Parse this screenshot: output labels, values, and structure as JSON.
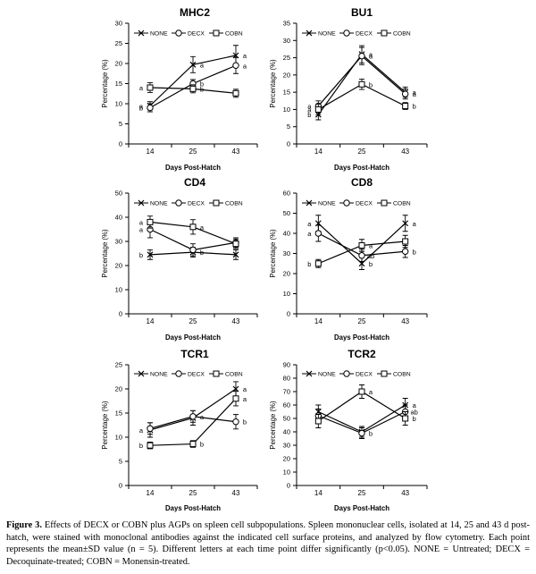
{
  "chart_data": [
    {
      "type": "line",
      "title": "MHC2",
      "xlabel": "Days Post-Hatch",
      "ylabel": "Percentage (%)",
      "categories": [
        "14",
        "25",
        "43"
      ],
      "ylim": [
        0,
        30
      ],
      "yticks": [
        0,
        5,
        10,
        15,
        20,
        25,
        30
      ],
      "legend": [
        "NONE",
        "DECX",
        "COBN"
      ],
      "series": [
        {
          "name": "NONE",
          "values": [
            9.5,
            19.7,
            22.0
          ],
          "errors": [
            1.0,
            2.0,
            2.5
          ]
        },
        {
          "name": "DECX",
          "values": [
            9.0,
            15.0,
            19.5
          ],
          "errors": [
            1.0,
            1.0,
            2.0
          ]
        },
        {
          "name": "COBN",
          "values": [
            14.0,
            13.7,
            12.6
          ],
          "errors": [
            1.2,
            1.0,
            1.0
          ]
        }
      ],
      "annotations": [
        [
          "a",
          "a",
          "a"
        ],
        [
          "b",
          "b",
          "a"
        ],
        [
          "a",
          "b",
          ""
        ]
      ]
    },
    {
      "type": "line",
      "title": "BU1",
      "xlabel": "Days Post-Hatch",
      "ylabel": "Percentage (%)",
      "categories": [
        "14",
        "25",
        "43"
      ],
      "ylim": [
        0,
        35
      ],
      "yticks": [
        0,
        5,
        10,
        15,
        20,
        25,
        30,
        35
      ],
      "legend": [
        "NONE",
        "DECX",
        "COBN"
      ],
      "series": [
        {
          "name": "NONE",
          "values": [
            8.5,
            26.0,
            15.0
          ],
          "errors": [
            1.5,
            2.5,
            1.5
          ]
        },
        {
          "name": "DECX",
          "values": [
            11.0,
            25.5,
            14.5
          ],
          "errors": [
            1.5,
            2.5,
            1.5
          ]
        },
        {
          "name": "COBN",
          "values": [
            10.0,
            17.3,
            11.0
          ],
          "errors": [
            1.5,
            1.5,
            1.0
          ]
        }
      ],
      "annotations": [
        [
          "b",
          "a",
          "a"
        ],
        [
          "a",
          "a",
          "a"
        ],
        [
          "a",
          "b",
          "b"
        ]
      ]
    },
    {
      "type": "line",
      "title": "CD4",
      "xlabel": "Days Post-Hatch",
      "ylabel": "Percentage (%)",
      "categories": [
        "14",
        "25",
        "43"
      ],
      "ylim": [
        0,
        50
      ],
      "yticks": [
        0,
        10,
        20,
        30,
        40,
        50
      ],
      "legend": [
        "NONE",
        "DECX",
        "COBN"
      ],
      "series": [
        {
          "name": "NONE",
          "values": [
            24.5,
            25.5,
            24.5
          ],
          "errors": [
            2.0,
            2.0,
            2.0
          ]
        },
        {
          "name": "DECX",
          "values": [
            35.0,
            26.5,
            29.5
          ],
          "errors": [
            3.5,
            2.5,
            2.0
          ]
        },
        {
          "name": "COBN",
          "values": [
            38.0,
            36.0,
            29.0
          ],
          "errors": [
            2.5,
            3.0,
            2.0
          ]
        }
      ],
      "annotations": [
        [
          "b",
          "b",
          ""
        ],
        [
          "a",
          "",
          ""
        ],
        [
          "a",
          "a",
          ""
        ]
      ]
    },
    {
      "type": "line",
      "title": "CD8",
      "xlabel": "Days Post-Hatch",
      "ylabel": "Percentage (%)",
      "categories": [
        "14",
        "25",
        "43"
      ],
      "ylim": [
        0,
        60
      ],
      "yticks": [
        0,
        10,
        20,
        30,
        40,
        50,
        60
      ],
      "legend": [
        "NONE",
        "DECX",
        "COBN"
      ],
      "series": [
        {
          "name": "NONE",
          "values": [
            45.0,
            25.0,
            45.0
          ],
          "errors": [
            4.0,
            3.0,
            4.0
          ]
        },
        {
          "name": "DECX",
          "values": [
            40.0,
            29.0,
            31.0
          ],
          "errors": [
            4.0,
            3.0,
            3.0
          ]
        },
        {
          "name": "COBN",
          "values": [
            25.0,
            34.0,
            36.0
          ],
          "errors": [
            2.0,
            3.0,
            3.0
          ]
        }
      ],
      "annotations": [
        [
          "a",
          "b",
          "a"
        ],
        [
          "a",
          "ab",
          "b"
        ],
        [
          "b",
          "a",
          ""
        ]
      ]
    },
    {
      "type": "line",
      "title": "TCR1",
      "xlabel": "Days Post-Hatch",
      "ylabel": "Percentage (%)",
      "categories": [
        "14",
        "25",
        "43"
      ],
      "ylim": [
        0,
        25
      ],
      "yticks": [
        0,
        5,
        10,
        15,
        20,
        25
      ],
      "legend": [
        "NONE",
        "DECX",
        "COBN"
      ],
      "series": [
        {
          "name": "NONE",
          "values": [
            11.5,
            14.0,
            20.0
          ],
          "errors": [
            1.5,
            1.5,
            1.5
          ]
        },
        {
          "name": "DECX",
          "values": [
            11.8,
            14.3,
            13.2
          ],
          "errors": [
            1.2,
            1.2,
            1.5
          ]
        },
        {
          "name": "COBN",
          "values": [
            8.3,
            8.6,
            18.0
          ],
          "errors": [
            0.7,
            0.7,
            1.5
          ]
        }
      ],
      "annotations": [
        [
          "a",
          "",
          "a"
        ],
        [
          "",
          "a",
          "b"
        ],
        [
          "b",
          "b",
          "a"
        ]
      ]
    },
    {
      "type": "line",
      "title": "TCR2",
      "xlabel": "Days Post-Hatch",
      "ylabel": "Percentage (%)",
      "categories": [
        "14",
        "25",
        "43"
      ],
      "ylim": [
        0,
        90
      ],
      "yticks": [
        0,
        10,
        20,
        30,
        40,
        50,
        60,
        70,
        80,
        90
      ],
      "legend": [
        "NONE",
        "DECX",
        "COBN"
      ],
      "series": [
        {
          "name": "NONE",
          "values": [
            55.0,
            40.0,
            60.0
          ],
          "errors": [
            5.0,
            4.0,
            5.0
          ]
        },
        {
          "name": "DECX",
          "values": [
            52.0,
            39.0,
            55.0
          ],
          "errors": [
            5.0,
            4.0,
            5.0
          ]
        },
        {
          "name": "COBN",
          "values": [
            48.0,
            70.0,
            50.0
          ],
          "errors": [
            5.0,
            5.0,
            5.0
          ]
        }
      ],
      "annotations": [
        [
          "",
          "",
          "a"
        ],
        [
          "",
          "b",
          "ab"
        ],
        [
          "",
          "a",
          "b"
        ]
      ]
    }
  ],
  "caption": {
    "label": "Figure 3.",
    "text": " Effects of DECX or COBN plus AGPs on spleen cell subpopulations. Spleen mononuclear cells, isolated at 14, 25 and 43 d post-hatch, were stained with monoclonal antibodies against the indicated cell surface proteins, and analyzed by flow cytometry. Each point represents the mean±SD value (n = 5). Different letters at each time point differ significantly (p<0.05). NONE = Untreated; DECX = Decoquinate-treated; COBN = Monensin-treated."
  }
}
